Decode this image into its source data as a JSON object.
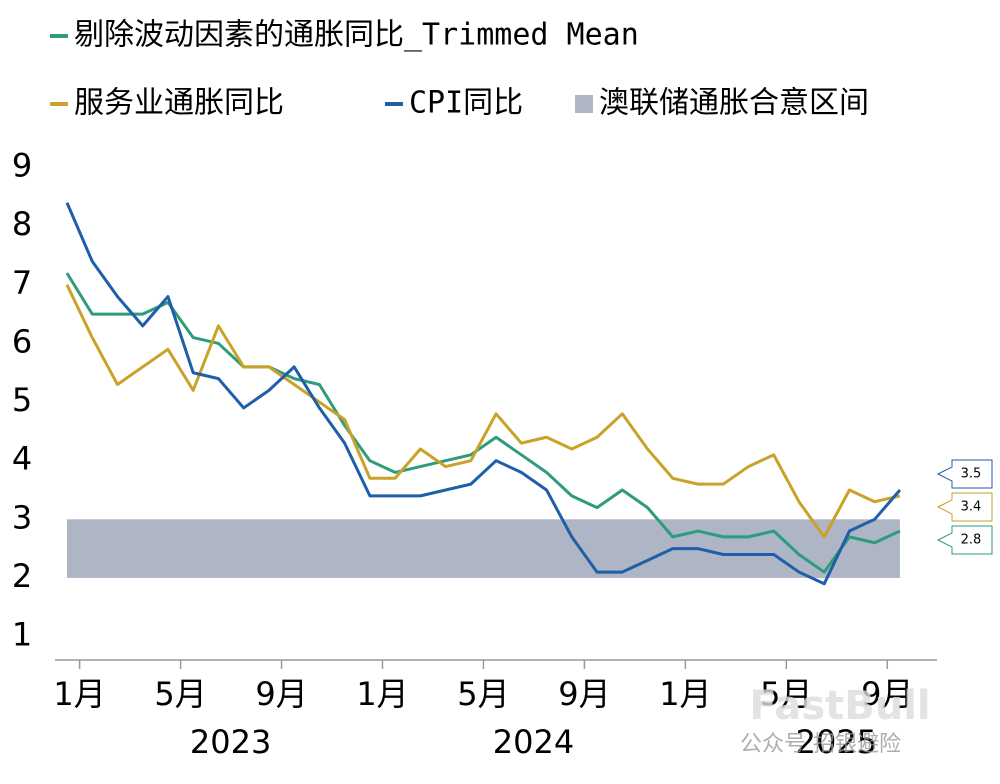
{
  "chart_data": {
    "type": "line",
    "categories": [
      null,
      "1月",
      null,
      null,
      null,
      "5月",
      null,
      null,
      null,
      "9月",
      null,
      null,
      null,
      "1月",
      null,
      null,
      null,
      "5月",
      null,
      null,
      null,
      "9月",
      null,
      null,
      null,
      "1月",
      null,
      null,
      null,
      "5月",
      null,
      null,
      null,
      "9月"
    ],
    "years": [
      "2023",
      "2024",
      "2025"
    ],
    "series": [
      {
        "name": "剔除波动因素的通胀同比_Trimmed Mean",
        "color": "#2e9c7c",
        "values": [
          7.2,
          6.5,
          6.5,
          6.5,
          6.7,
          6.1,
          6.0,
          5.6,
          5.6,
          5.4,
          5.3,
          4.6,
          4.0,
          3.8,
          3.9,
          4.0,
          4.1,
          4.4,
          4.1,
          3.8,
          3.4,
          3.2,
          3.5,
          3.2,
          2.7,
          2.8,
          2.7,
          2.7,
          2.8,
          2.4,
          2.1,
          2.7,
          2.6,
          2.8
        ]
      },
      {
        "name": "服务业通胀同比",
        "color": "#c9a229",
        "values": [
          7.0,
          6.1,
          5.3,
          5.6,
          5.9,
          5.2,
          6.3,
          5.6,
          5.6,
          5.3,
          5.0,
          4.7,
          3.7,
          3.7,
          4.2,
          3.9,
          4.0,
          4.8,
          4.3,
          4.4,
          4.2,
          4.4,
          4.8,
          4.2,
          3.7,
          3.6,
          3.6,
          3.9,
          4.1,
          3.3,
          2.7,
          3.5,
          3.3,
          3.4
        ]
      },
      {
        "name": "CPI同比",
        "color": "#1f5ea8",
        "values": [
          8.4,
          7.4,
          6.8,
          6.3,
          6.8,
          5.5,
          5.4,
          4.9,
          5.2,
          5.6,
          4.9,
          4.3,
          3.4,
          3.4,
          3.4,
          3.5,
          3.6,
          4.0,
          3.8,
          3.5,
          2.7,
          2.1,
          2.1,
          2.3,
          2.5,
          2.5,
          2.4,
          2.4,
          2.4,
          2.1,
          1.9,
          2.8,
          3.0,
          3.5
        ]
      }
    ],
    "band": {
      "name": "澳联储通胀合意区间",
      "range": [
        2,
        3
      ],
      "color": "#aeb5c4"
    },
    "ylim": [
      0.6,
      9.3
    ],
    "yticks": [
      1,
      2,
      3,
      4,
      5,
      6,
      7,
      8,
      9
    ],
    "grid": false,
    "watermarks": [
      "FastBull",
      "公众号 招银避险"
    ]
  }
}
